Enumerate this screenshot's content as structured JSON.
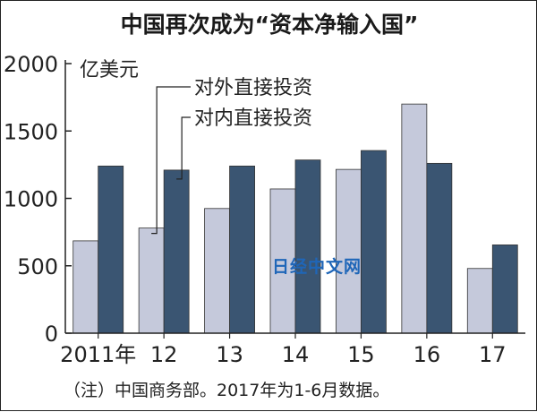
{
  "chart_data": {
    "type": "bar",
    "title": "中国再次成为“资本净输入国”",
    "ylabel": "亿美元",
    "categories": [
      "2011年",
      "12",
      "13",
      "14",
      "15",
      "16",
      "17"
    ],
    "series": [
      {
        "name": "对外直接投资",
        "values": [
          685,
          780,
          925,
          1070,
          1215,
          1700,
          480
        ],
        "color": "#c5c9db"
      },
      {
        "name": "对内直接投资",
        "values": [
          1240,
          1210,
          1240,
          1285,
          1355,
          1260,
          655
        ],
        "color": "#3a5572"
      }
    ],
    "ylim": [
      0,
      2000
    ],
    "yticks": [
      "0",
      "500",
      "1000",
      "1500",
      "2000"
    ],
    "legend_placement": "top-left, leader lines to 2012 bars",
    "grid": false,
    "note": "（注）中国商务部。2017年为1-6月数据。",
    "watermark": "日经中文网"
  }
}
